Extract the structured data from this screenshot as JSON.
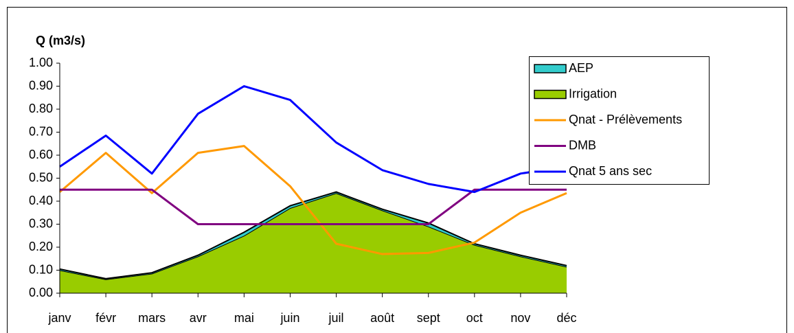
{
  "chart_data": {
    "type": "line",
    "ylabel": "Q (m3/s)",
    "categories": [
      "janv",
      "févr",
      "mars",
      "avr",
      "mai",
      "juin",
      "juil",
      "août",
      "sept",
      "oct",
      "nov",
      "déc"
    ],
    "series": [
      {
        "name": "AEP",
        "type": "area",
        "color": "#33cccc",
        "values": [
          0.005,
          0.003,
          0.004,
          0.005,
          0.015,
          0.01,
          0.005,
          0.005,
          0.015,
          0.005,
          0.005,
          0.005
        ]
      },
      {
        "name": "Irrigation",
        "type": "area",
        "color": "#99cc00",
        "values": [
          0.1,
          0.06,
          0.085,
          0.16,
          0.25,
          0.37,
          0.435,
          0.36,
          0.29,
          0.21,
          0.16,
          0.115
        ]
      },
      {
        "name": "Qnat - Prélèvements",
        "type": "line",
        "color": "#ff9900",
        "values": [
          0.44,
          0.61,
          0.435,
          0.61,
          0.64,
          0.465,
          0.215,
          0.17,
          0.175,
          0.22,
          0.35,
          0.435
        ]
      },
      {
        "name": "DMB",
        "type": "line",
        "color": "#800080",
        "values": [
          0.45,
          0.45,
          0.45,
          0.3,
          0.3,
          0.3,
          0.3,
          0.3,
          0.3,
          0.45,
          0.45,
          0.45
        ]
      },
      {
        "name": "Qnat 5 ans sec",
        "type": "line",
        "color": "#0000ff",
        "values": [
          0.55,
          0.685,
          0.52,
          0.78,
          0.9,
          0.84,
          0.655,
          0.535,
          0.475,
          0.44,
          0.52,
          0.55
        ]
      }
    ],
    "ylim": [
      0,
      1
    ],
    "yticks": [
      {
        "value": 0,
        "label": "0.00"
      },
      {
        "value": 0.1,
        "label": "0.10"
      },
      {
        "value": 0.2,
        "label": "0.20"
      },
      {
        "value": 0.3,
        "label": "0.30"
      },
      {
        "value": 0.4,
        "label": "0.40"
      },
      {
        "value": 0.5,
        "label": "0.50"
      },
      {
        "value": 0.6,
        "label": "0.60"
      },
      {
        "value": 0.7,
        "label": "0.70"
      },
      {
        "value": 0.8,
        "label": "0.80"
      },
      {
        "value": 0.9,
        "label": "0.90"
      },
      {
        "value": 1,
        "label": "1.00"
      }
    ],
    "grid": false,
    "legend": "top-right"
  }
}
